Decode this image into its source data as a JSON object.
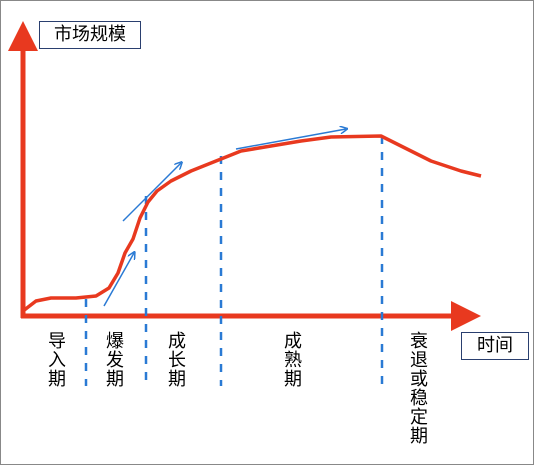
{
  "axes": {
    "y_label": "市场规模",
    "x_label": "时间"
  },
  "stages": [
    {
      "label": "导入期"
    },
    {
      "label": "爆发期"
    },
    {
      "label": "成长期"
    },
    {
      "label": "成熟期"
    },
    {
      "label": "衰退或稳定期"
    }
  ]
}
